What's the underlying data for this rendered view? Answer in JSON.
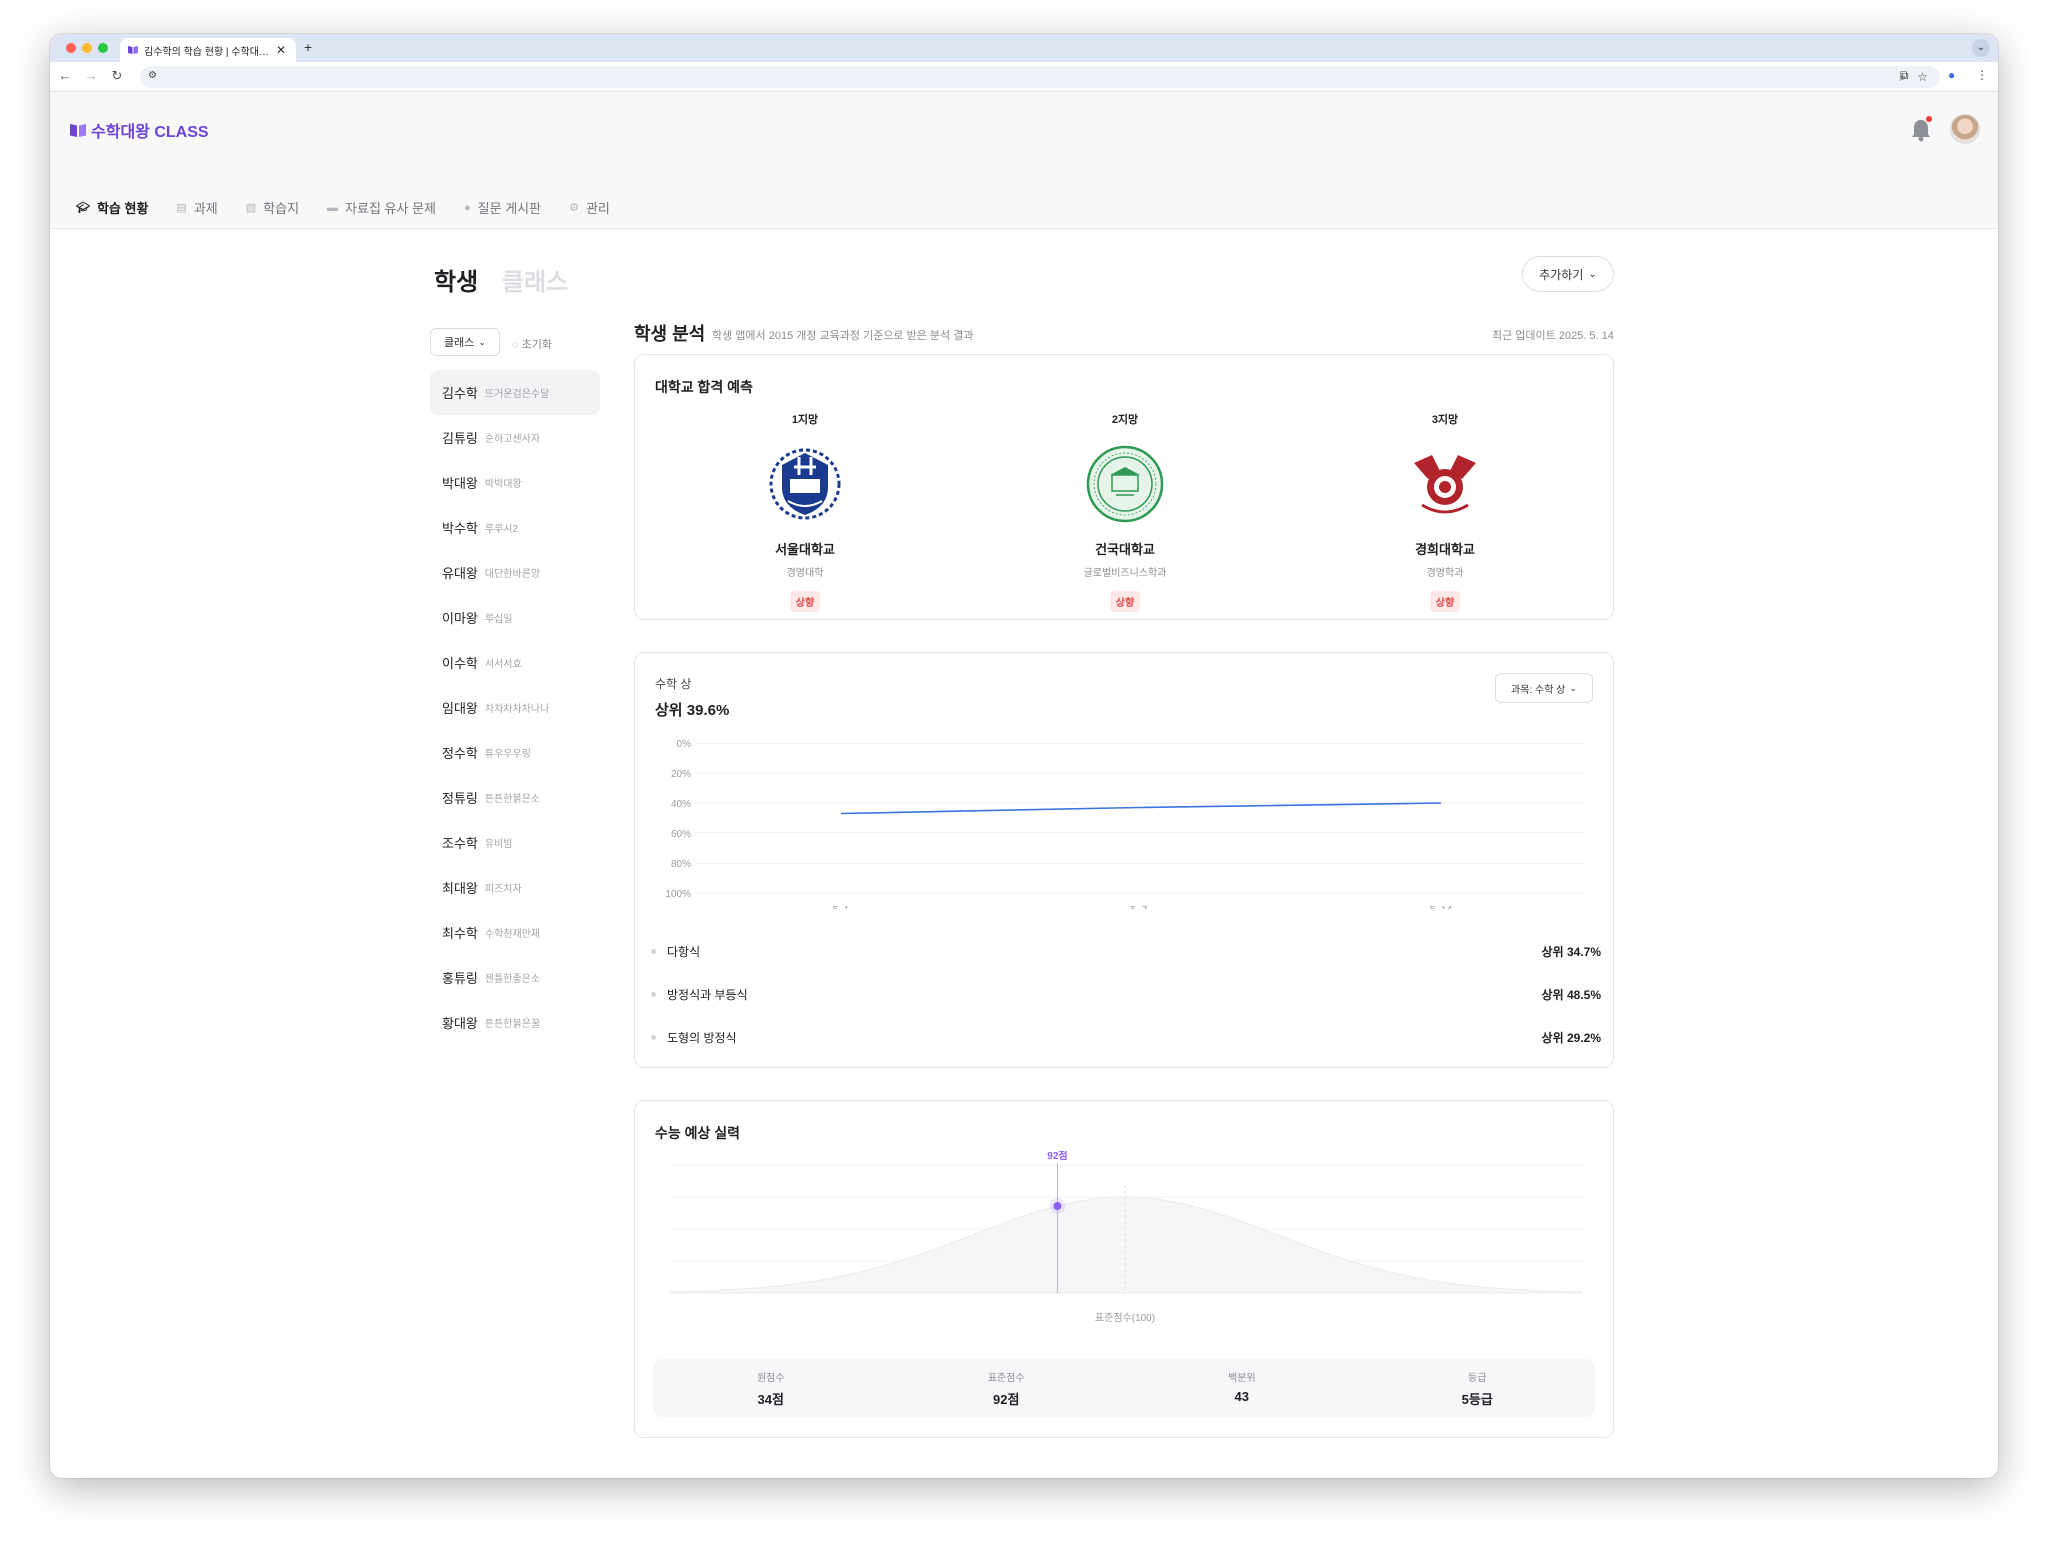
{
  "browser": {
    "tab_title": "김수학의 학습 현황 | 수학대왕 CLASS",
    "new_tab": "+",
    "close": "✕"
  },
  "app": {
    "logo_text": "수학대왕 CLASS",
    "brand_color": "#6d43d8",
    "nav": [
      {
        "label": "학습 현황",
        "icon": "graduation-cap-icon",
        "active": true
      },
      {
        "label": "과제",
        "icon": "document-icon",
        "active": false
      },
      {
        "label": "학습지",
        "icon": "worksheet-icon",
        "active": false
      },
      {
        "label": "자료집 유사 문제",
        "icon": "folder-icon",
        "active": false
      },
      {
        "label": "질문 게시판",
        "icon": "chat-icon",
        "active": false
      },
      {
        "label": "관리",
        "icon": "gear-icon",
        "active": false
      }
    ]
  },
  "page": {
    "title_active": "학생",
    "title_inactive": "클래스",
    "add_button": "추가하기"
  },
  "sidebar": {
    "filter_label": "클래스",
    "reset_label": "초기화",
    "students": [
      {
        "name": "김수학",
        "nick": "뜨거운검은수달",
        "active": true
      },
      {
        "name": "김튜링",
        "nick": "순하고센사자"
      },
      {
        "name": "박대왕",
        "nick": "박박대왕"
      },
      {
        "name": "박수학",
        "nick": "루루시2"
      },
      {
        "name": "유대왕",
        "nick": "대단한바른양"
      },
      {
        "name": "이마왕",
        "nick": "루십일"
      },
      {
        "name": "이수학",
        "nick": "서서서효"
      },
      {
        "name": "임대왕",
        "nick": "차차차차차나나"
      },
      {
        "name": "정수학",
        "nick": "튜우우우링"
      },
      {
        "name": "정튜링",
        "nick": "튼튼한붉은소"
      },
      {
        "name": "조수학",
        "nick": "유비빔"
      },
      {
        "name": "최대왕",
        "nick": "피즈치자"
      },
      {
        "name": "최수학",
        "nick": "수학천재만재"
      },
      {
        "name": "홍튜링",
        "nick": "젠틀한좋은소"
      },
      {
        "name": "황대왕",
        "nick": "튼튼한붉은꿀"
      }
    ]
  },
  "analysis": {
    "title": "학생 분석",
    "subtitle": "학생 앱에서 2015 개정 교육과정 기준으로 받은 분석 결과",
    "updated": "최근 업데이트 2025. 5. 14"
  },
  "admission": {
    "title": "대학교 합격 예측",
    "choices": [
      {
        "rank": "1지망",
        "university": "서울대학교",
        "department": "경영대학",
        "status": "상향"
      },
      {
        "rank": "2지망",
        "university": "건국대학교",
        "department": "글로벌비즈니스학과",
        "status": "상향"
      },
      {
        "rank": "3지망",
        "university": "경희대학교",
        "department": "경영학과",
        "status": "상향"
      }
    ]
  },
  "subject": {
    "name": "수학 상",
    "percentile": "상위 39.6%",
    "selector": "과목: 수학 상",
    "units": [
      {
        "name": "다항식",
        "value": "상위 34.7%"
      },
      {
        "name": "방정식과 부등식",
        "value": "상위 48.5%"
      },
      {
        "name": "도형의 방정식",
        "value": "상위 29.2%"
      }
    ]
  },
  "chart_data": {
    "type": "line",
    "x": [
      "5. 1",
      "5. 7",
      "5. 14"
    ],
    "series": [
      {
        "values": [
          47,
          43,
          40
        ]
      }
    ],
    "y_ticks": [
      "0%",
      "20%",
      "40%",
      "60%",
      "80%",
      "100%"
    ],
    "ylim": [
      0,
      100
    ],
    "y_inverted": true,
    "grid": true,
    "line_color": "#3b73e0"
  },
  "csat": {
    "title": "수능 예상 실력",
    "marker_label": "92점",
    "axis_label": "표준점수(100)",
    "distribution": {
      "type": "normal",
      "mean": 100,
      "student_score": 92
    },
    "marker_color": "#8b5cf6",
    "stats": [
      {
        "label": "원점수",
        "value": "34점"
      },
      {
        "label": "표준점수",
        "value": "92점"
      },
      {
        "label": "백분위",
        "value": "43"
      },
      {
        "label": "등급",
        "value": "5등급"
      }
    ]
  }
}
